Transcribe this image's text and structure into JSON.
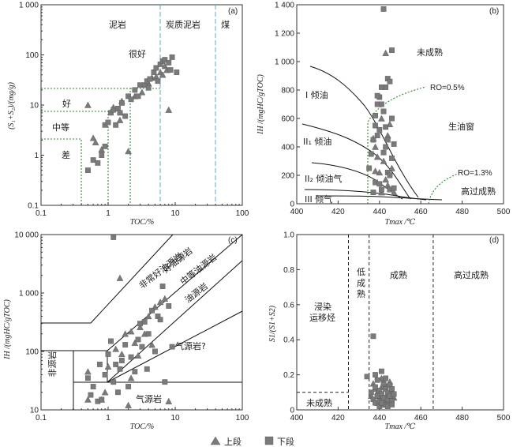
{
  "legend": {
    "upper": "上段",
    "lower": "下段"
  },
  "chart_data": [
    {
      "id": "a",
      "type": "scatter",
      "panel_label": "(a)",
      "xlabel": "TOC/%",
      "ylabel": "(S₁+S₂)/(mg/g)",
      "xscale": "log",
      "yscale": "log",
      "xlim": [
        0.1,
        100
      ],
      "ylim": [
        0.1,
        1000
      ],
      "xticks": [
        "0.1",
        "1",
        "10",
        "100"
      ],
      "yticks": [
        "0.1",
        "1",
        "10",
        "100",
        "1 000"
      ],
      "zones": [
        "泥岩",
        "炭质泥岩",
        "煤",
        "很好",
        "好",
        "中等",
        "差"
      ],
      "series": [
        {
          "name": "上段",
          "marker": "triangle",
          "points": [
            [
              0.5,
              10
            ],
            [
              0.6,
              2.2
            ],
            [
              0.65,
              1.8
            ],
            [
              0.8,
              1.3
            ],
            [
              1.2,
              9
            ],
            [
              1.5,
              5
            ],
            [
              1.6,
              12
            ],
            [
              2.0,
              1.2
            ],
            [
              2.5,
              15
            ],
            [
              3.2,
              18
            ],
            [
              4.0,
              27
            ],
            [
              4.5,
              35
            ],
            [
              5.2,
              37
            ],
            [
              6.0,
              45
            ],
            [
              7.0,
              60
            ],
            [
              6.5,
              40
            ],
            [
              8.0,
              8
            ],
            [
              7.5,
              50
            ]
          ]
        },
        {
          "name": "下段",
          "marker": "square",
          "points": [
            [
              0.5,
              0.5
            ],
            [
              0.6,
              0.8
            ],
            [
              0.7,
              0.7
            ],
            [
              0.8,
              1.0
            ],
            [
              0.9,
              1.5
            ],
            [
              0.9,
              4
            ],
            [
              1.0,
              4.5
            ],
            [
              1.1,
              7
            ],
            [
              1.2,
              8
            ],
            [
              1.3,
              4
            ],
            [
              1.4,
              8.5
            ],
            [
              1.5,
              7
            ],
            [
              1.6,
              11
            ],
            [
              1.8,
              6
            ],
            [
              2.0,
              15
            ],
            [
              2.2,
              13
            ],
            [
              2.5,
              20
            ],
            [
              2.8,
              15
            ],
            [
              3.0,
              25
            ],
            [
              3.5,
              25
            ],
            [
              3.8,
              30
            ],
            [
              4.0,
              22
            ],
            [
              4.2,
              33
            ],
            [
              4.8,
              45
            ],
            [
              5.2,
              55
            ],
            [
              5.5,
              30
            ],
            [
              6.0,
              65
            ],
            [
              6.5,
              75
            ],
            [
              7.0,
              80
            ],
            [
              8.0,
              70
            ],
            [
              9.0,
              90
            ],
            [
              10.5,
              45
            ],
            [
              8.5,
              50
            ]
          ]
        }
      ]
    },
    {
      "id": "b",
      "type": "scatter",
      "panel_label": "(b)",
      "xlabel": "Tmax /℃",
      "ylabel": "IH /(mgHC/gTOC)",
      "xlim": [
        400,
        500
      ],
      "ylim": [
        0,
        1400
      ],
      "xticks": [
        "400",
        "420",
        "440",
        "460",
        "480",
        "500"
      ],
      "yticks": [
        "0",
        "200",
        "400",
        "600",
        "800",
        "1 000",
        "1 200",
        "1 400"
      ],
      "zones": [
        "未成熟",
        "生油窗",
        "高过成熟",
        "I 倾油",
        "II₁ 倾油",
        "II₂ 倾油气",
        "III 倾气"
      ],
      "annotations": [
        "RO=0.5%",
        "RO=1.3%"
      ],
      "series": [
        {
          "name": "上段",
          "marker": "triangle",
          "points": [
            [
              437,
              460
            ],
            [
              438,
              400
            ],
            [
              439,
              330
            ],
            [
              440,
              220
            ],
            [
              441,
              600
            ],
            [
              441,
              80
            ],
            [
              442,
              300
            ],
            [
              443,
              1060
            ],
            [
              443,
              170
            ],
            [
              444,
              130
            ],
            [
              445,
              560
            ],
            [
              446,
              250
            ],
            [
              447,
              80
            ],
            [
              438,
              230
            ],
            [
              444,
              480
            ]
          ]
        },
        {
          "name": "下段",
          "marker": "square",
          "points": [
            [
              435,
              250
            ],
            [
              436,
              350
            ],
            [
              437,
              450
            ],
            [
              437,
              80
            ],
            [
              438,
              550
            ],
            [
              438,
              620
            ],
            [
              439,
              700
            ],
            [
              439,
              480
            ],
            [
              440,
              750
            ],
            [
              440,
              520
            ],
            [
              441,
              700
            ],
            [
              441,
              100
            ],
            [
              442,
              1370
            ],
            [
              442,
              650
            ],
            [
              443,
              540
            ],
            [
              443,
              820
            ],
            [
              443,
              400
            ],
            [
              444,
              880
            ],
            [
              444,
              220
            ],
            [
              445,
              860
            ],
            [
              445,
              100
            ],
            [
              446,
              1080
            ],
            [
              446,
              320
            ],
            [
              447,
              420
            ],
            [
              447,
              110
            ],
            [
              438,
              150
            ],
            [
              440,
              140
            ],
            [
              442,
              360
            ],
            [
              445,
              200
            ],
            [
              439,
              760
            ],
            [
              441,
              820
            ],
            [
              444,
              450
            ],
            [
              446,
              600
            ]
          ]
        }
      ]
    },
    {
      "id": "c",
      "type": "scatter",
      "panel_label": "(c)",
      "xlabel": "TOC/%",
      "ylabel": "IH /(mgHC/gTOC)",
      "xscale": "log",
      "yscale": "log",
      "xlim": [
        0.1,
        100
      ],
      "ylim": [
        10,
        10000
      ],
      "xticks": [
        "0.1",
        "1",
        "10",
        "100"
      ],
      "yticks": [
        "10",
        "100",
        "1 000",
        "10 000"
      ],
      "zones": [
        "非常好油源岩",
        "好油源岩",
        "中等油源岩",
        "油源岩",
        "气源岩?",
        "气源岩",
        "非源岩"
      ],
      "series": [
        {
          "name": "上段",
          "marker": "triangle",
          "points": [
            [
              0.5,
              45
            ],
            [
              0.5,
              15
            ],
            [
              0.8,
              15
            ],
            [
              0.9,
              20
            ],
            [
              1.0,
              55
            ],
            [
              1.3,
              110
            ],
            [
              1.5,
              1800
            ],
            [
              1.6,
              90
            ],
            [
              1.8,
              200
            ],
            [
              2.0,
              12
            ],
            [
              2.2,
              220
            ],
            [
              2.5,
              140
            ],
            [
              3.0,
              260
            ],
            [
              3.5,
              200
            ],
            [
              4.0,
              400
            ],
            [
              4.5,
              130
            ],
            [
              5.0,
              580
            ],
            [
              6.0,
              700
            ],
            [
              7.0,
              800
            ],
            [
              8.0,
              14
            ],
            [
              2.2,
              35
            ],
            [
              2.8,
              85
            ]
          ]
        },
        {
          "name": "下段",
          "marker": "square",
          "points": [
            [
              0.5,
              35
            ],
            [
              0.55,
              18
            ],
            [
              0.6,
              25
            ],
            [
              0.7,
              14
            ],
            [
              0.75,
              60
            ],
            [
              0.8,
              15
            ],
            [
              0.9,
              40
            ],
            [
              1.0,
              90
            ],
            [
              1.1,
              150
            ],
            [
              1.2,
              30
            ],
            [
              1.3,
              60
            ],
            [
              1.4,
              20
            ],
            [
              1.5,
              50
            ],
            [
              1.6,
              70
            ],
            [
              1.8,
              130
            ],
            [
              2.0,
              25
            ],
            [
              2.2,
              80
            ],
            [
              2.5,
              45
            ],
            [
              2.8,
              160
            ],
            [
              3.0,
              300
            ],
            [
              3.2,
              120
            ],
            [
              3.5,
              320
            ],
            [
              3.8,
              50
            ],
            [
              4.0,
              200
            ],
            [
              4.5,
              500
            ],
            [
              5.0,
              100
            ],
            [
              5.5,
              400
            ],
            [
              6.0,
              350
            ],
            [
              6.5,
              1300
            ],
            [
              7.0,
              30
            ],
            [
              8.0,
              600
            ],
            [
              9.0,
              120
            ],
            [
              1.2,
              9000
            ]
          ]
        }
      ]
    },
    {
      "id": "d",
      "type": "scatter",
      "panel_label": "(d)",
      "xlabel": "Tmax /℃",
      "ylabel": "S1/(S1+S2)",
      "xlim": [
        400,
        500
      ],
      "ylim": [
        0,
        1.0
      ],
      "xticks": [
        "400",
        "420",
        "440",
        "460",
        "480",
        "500"
      ],
      "yticks": [
        "0",
        "0.2",
        "0.4",
        "0.6",
        "0.8",
        "1.0"
      ],
      "zones": [
        "浸染运移烃",
        "低成熟",
        "成熟",
        "高过成熟",
        "未成熟"
      ],
      "series": [
        {
          "name": "上段",
          "marker": "triangle",
          "points": [
            [
              437,
              0.15
            ],
            [
              438,
              0.12
            ],
            [
              439,
              0.1
            ],
            [
              440,
              0.08
            ],
            [
              441,
              0.18
            ],
            [
              442,
              0.06
            ],
            [
              443,
              0.14
            ],
            [
              444,
              0.09
            ],
            [
              445,
              0.05
            ],
            [
              446,
              0.11
            ],
            [
              439,
              0.04
            ],
            [
              447,
              0.07
            ],
            [
              441,
              0.13
            ],
            [
              443,
              0.03
            ],
            [
              445,
              0.16
            ],
            [
              436,
              0.08
            ]
          ]
        },
        {
          "name": "下段",
          "marker": "square",
          "points": [
            [
              434,
              0.19
            ],
            [
              436,
              0.1
            ],
            [
              437,
              0.06
            ],
            [
              437,
              0.42
            ],
            [
              438,
              0.13
            ],
            [
              438,
              0.04
            ],
            [
              439,
              0.08
            ],
            [
              439,
              0.17
            ],
            [
              440,
              0.11
            ],
            [
              440,
              0.05
            ],
            [
              441,
              0.09
            ],
            [
              441,
              0.22
            ],
            [
              442,
              0.07
            ],
            [
              442,
              0.15
            ],
            [
              443,
              0.12
            ],
            [
              443,
              0.03
            ],
            [
              444,
              0.1
            ],
            [
              444,
              0.06
            ],
            [
              445,
              0.14
            ],
            [
              445,
              0.08
            ],
            [
              446,
              0.05
            ],
            [
              446,
              0.12
            ],
            [
              447,
              0.09
            ],
            [
              440,
              0.02
            ],
            [
              442,
              0.03
            ],
            [
              438,
              0.2
            ],
            [
              441,
              0.04
            ],
            [
              443,
              0.18
            ],
            [
              444,
              0.02
            ],
            [
              446,
              0.03
            ]
          ]
        }
      ]
    }
  ]
}
